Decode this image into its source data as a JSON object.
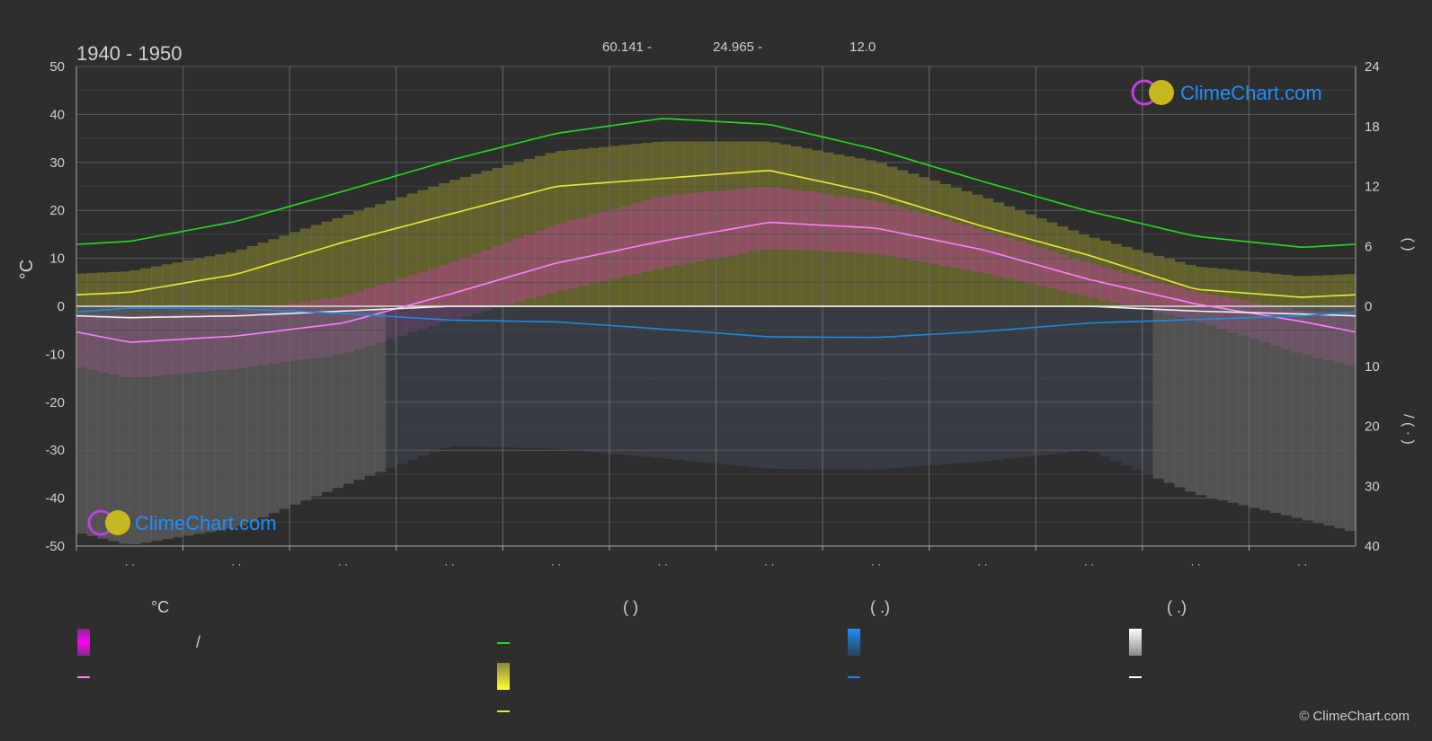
{
  "header": {
    "period": "1940 - 1950",
    "coords": [
      "60.141 -",
      "24.965 -",
      "12.0"
    ]
  },
  "watermark": {
    "brand": "ClimeChart.com",
    "copyright": "© ClimeChart.com"
  },
  "axes": {
    "left_label": "°C",
    "left_ticks": [
      "50",
      "40",
      "30",
      "20",
      "10",
      "0",
      "-10",
      "-20",
      "-30",
      "-40",
      "-50"
    ],
    "right_ticks_top": [
      "24",
      "18",
      "12",
      "6",
      "0"
    ],
    "right_ticks_bottom": [
      "10",
      "20",
      "30",
      "40"
    ],
    "right_label_upper": "(    )",
    "right_label_lower": "/ (  ·  )",
    "month_labels": [
      "· ·",
      "· ·",
      "· ·",
      "· ·",
      "· ·",
      "· ·",
      "· ·",
      "· ·",
      "· ·",
      "· ·",
      "· ·",
      "· ·"
    ]
  },
  "legend": {
    "col1_header": "°C",
    "col1_row1_text": "/",
    "col2_header": "(          )",
    "col3_header": "(    .)",
    "col4_header": "(    .)"
  },
  "colors": {
    "background": "#2e2e2e",
    "temp_range": "#e020e0",
    "temp_mean": "#ff7fff",
    "daylight": "#22dd22",
    "sunshine": "#e8e83a",
    "rain": "#1e88e5",
    "snow": "#f0f0f0",
    "accent_text": "#1e90ff"
  },
  "chart_data": {
    "type": "line",
    "title": "",
    "x": [
      "Jan",
      "Feb",
      "Mar",
      "Apr",
      "May",
      "Jun",
      "Jul",
      "Aug",
      "Sep",
      "Oct",
      "Nov",
      "Dec"
    ],
    "left_axis": {
      "label": "°C",
      "ylim": [
        -50,
        50
      ]
    },
    "right_axis_upper": {
      "ylim": [
        0,
        24
      ]
    },
    "right_axis_lower": {
      "ylim": [
        0,
        40
      ]
    },
    "grid": true,
    "series": [
      {
        "key": "daylight",
        "axis": "right_upper",
        "values": [
          6.5,
          8.5,
          11.5,
          14.6,
          17.3,
          18.8,
          18.2,
          15.7,
          12.5,
          9.5,
          7.0,
          5.9
        ]
      },
      {
        "key": "sunshine",
        "axis": "right_upper",
        "values": [
          1.4,
          3.2,
          6.4,
          9.2,
          12.0,
          12.8,
          13.6,
          11.3,
          8.0,
          5.1,
          1.7,
          0.9
        ]
      },
      {
        "key": "temp_mean",
        "axis": "left",
        "values": [
          -7.5,
          -6.2,
          -3.5,
          2.5,
          9.0,
          13.6,
          17.5,
          16.3,
          11.8,
          5.6,
          0.5,
          -3.2
        ]
      },
      {
        "key": "snow",
        "axis": "right_lower",
        "values": [
          1.9,
          1.6,
          0.8,
          0.0,
          0.0,
          0.0,
          0.0,
          0.0,
          0.0,
          0.0,
          0.8,
          1.3
        ]
      },
      {
        "key": "rain",
        "axis": "right_lower",
        "values": [
          0.3,
          0.4,
          1.2,
          2.3,
          2.6,
          3.8,
          5.1,
          5.2,
          4.2,
          2.8,
          2.2,
          1.6
        ]
      }
    ],
    "temp_range_band": {
      "axis": "left",
      "max": [
        -2,
        -1,
        2,
        9,
        17,
        23,
        25,
        22,
        16,
        9,
        3,
        -1
      ],
      "min": [
        -15,
        -13,
        -10,
        -3,
        3,
        8,
        12,
        11,
        7,
        2,
        -3,
        -10
      ]
    },
    "sunshine_band": {
      "axis": "right_upper",
      "values": [
        3.5,
        5.5,
        9.0,
        12.5,
        15.5,
        16.5,
        16.5,
        14.5,
        11.0,
        7.0,
        4.0,
        3.0
      ]
    }
  }
}
